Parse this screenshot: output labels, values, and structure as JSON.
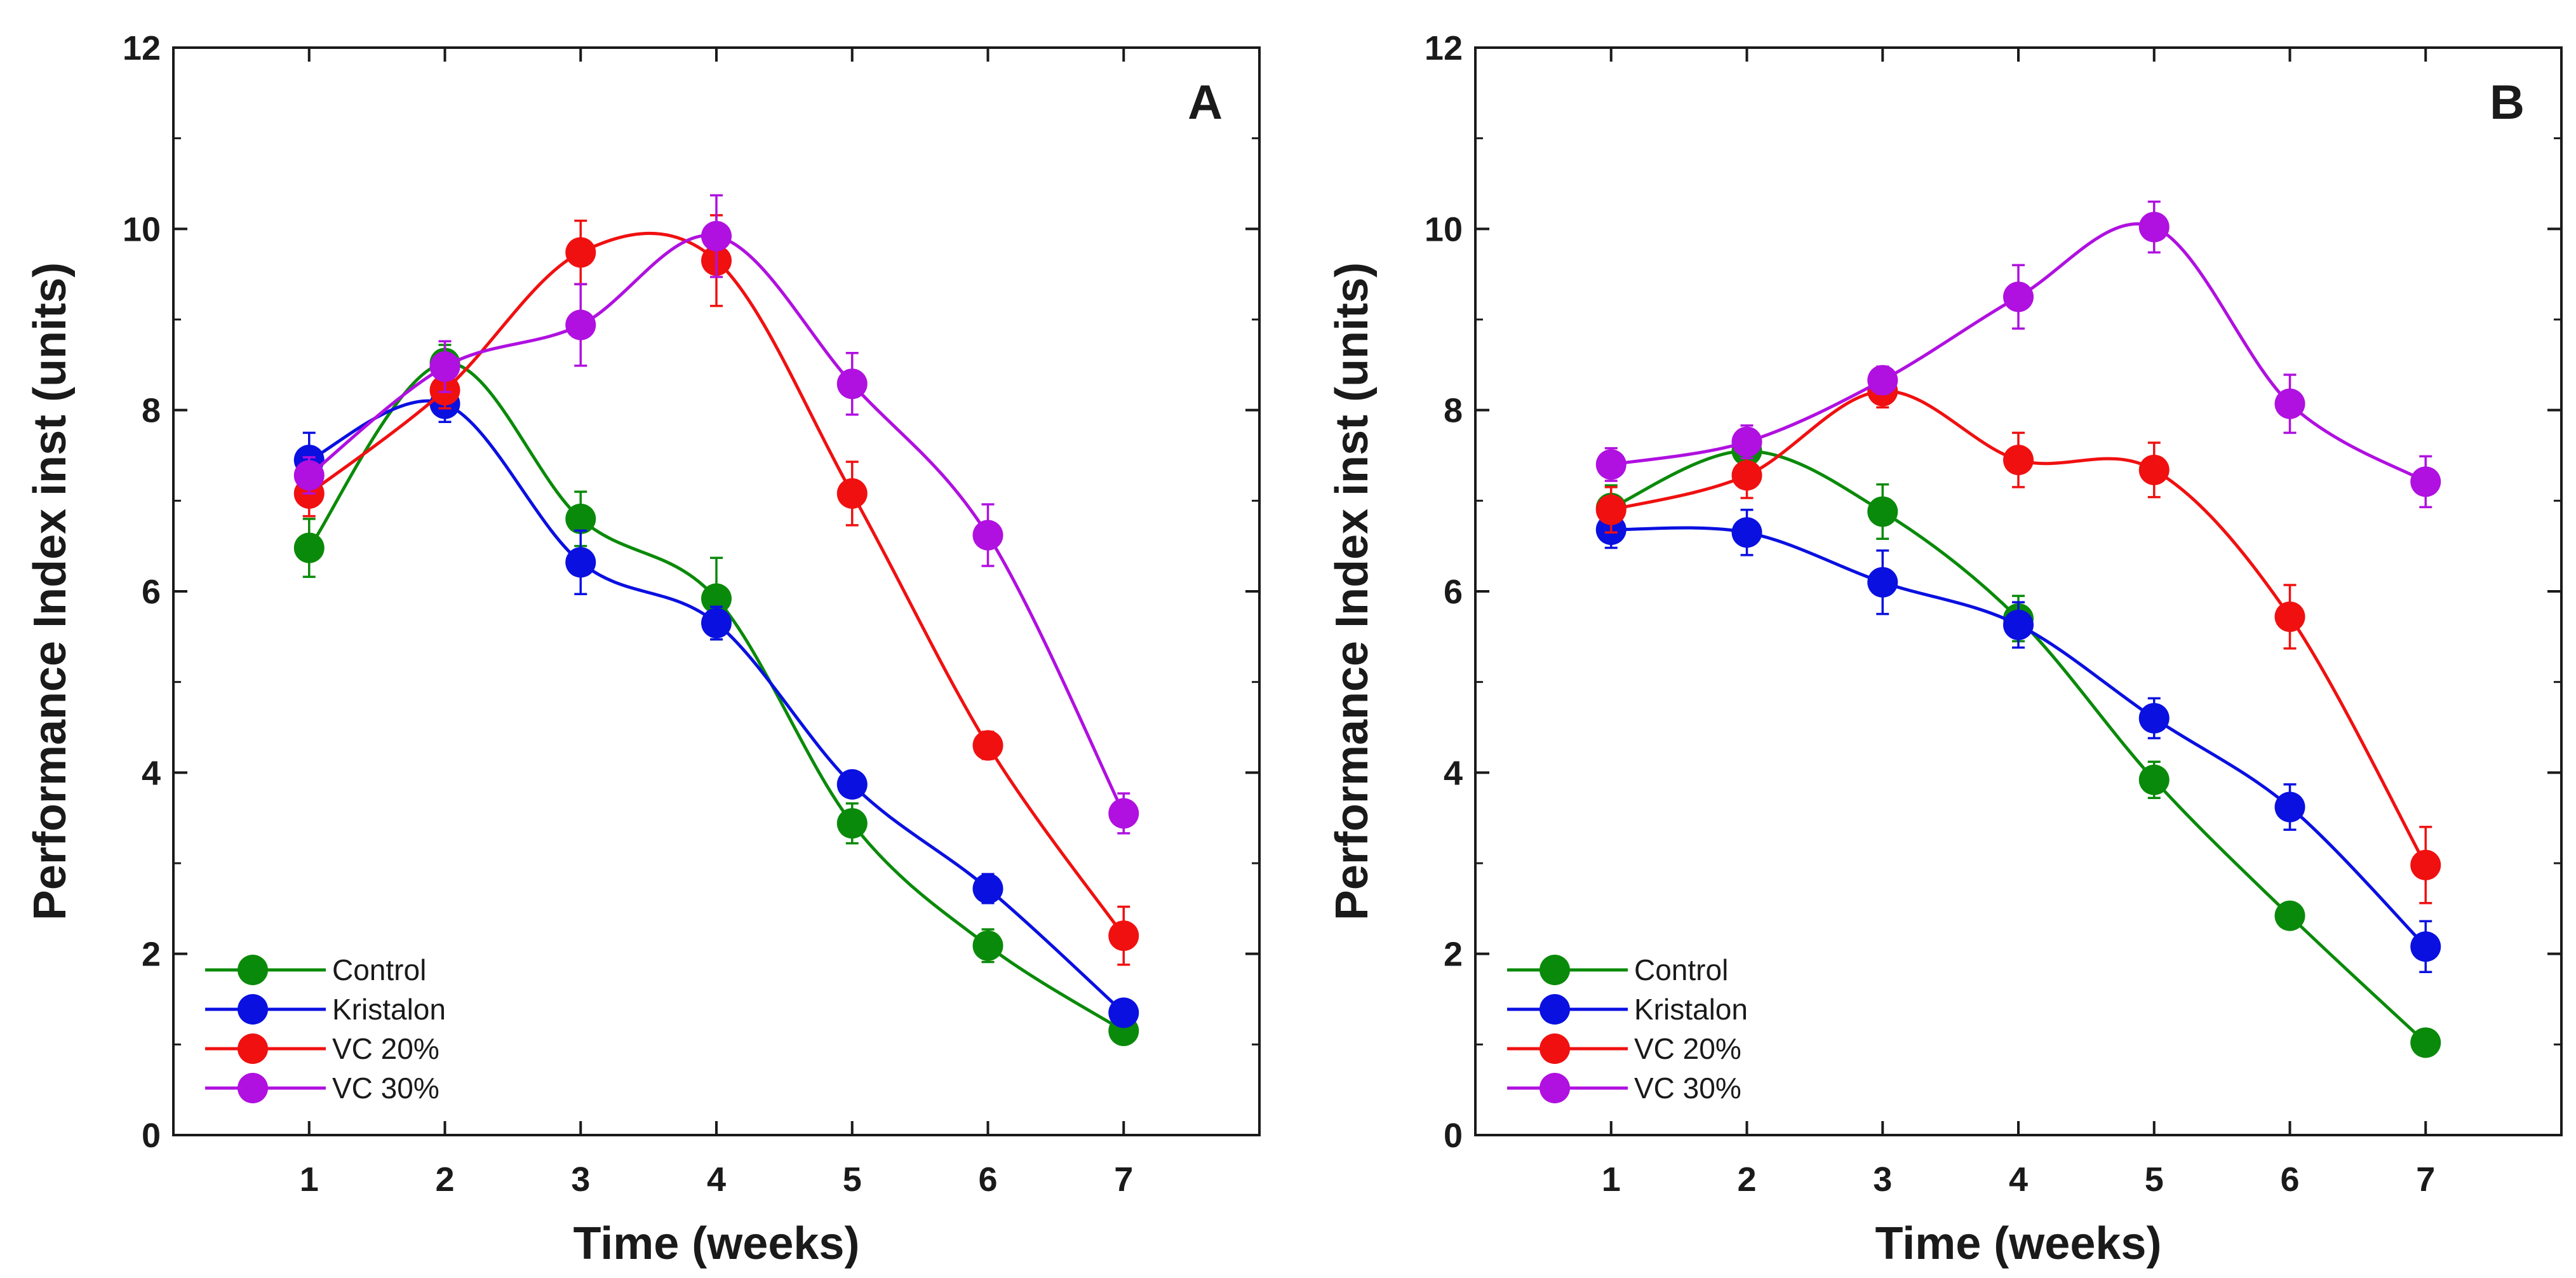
{
  "chart_data": [
    {
      "type": "line",
      "panel_label": "A",
      "xlabel": "Time (weeks)",
      "ylabel": "Performance Index inst (units)",
      "x": [
        1,
        2,
        3,
        4,
        5,
        6,
        7
      ],
      "xlim": [
        0,
        8
      ],
      "ylim": [
        0,
        12
      ],
      "xticks": [
        "1",
        "2",
        "3",
        "4",
        "5",
        "6",
        "7"
      ],
      "yticks": [
        "0",
        "2",
        "4",
        "6",
        "8",
        "10",
        "12"
      ],
      "legend_position": "bottom-left",
      "series": [
        {
          "name": "Control",
          "color": "#0a8a0a",
          "values": [
            6.48,
            8.52,
            6.8,
            5.92,
            3.44,
            2.09,
            1.15
          ],
          "errors": [
            0.32,
            0.2,
            0.3,
            0.45,
            0.22,
            0.18,
            0.1
          ]
        },
        {
          "name": "Kristalon",
          "color": "#0a10e0",
          "values": [
            7.45,
            8.07,
            6.32,
            5.65,
            3.87,
            2.72,
            1.35
          ],
          "errors": [
            0.3,
            0.2,
            0.35,
            0.18,
            0.14,
            0.16,
            0.1
          ]
        },
        {
          "name": "VC 20%",
          "color": "#f01010",
          "values": [
            7.08,
            8.22,
            9.74,
            9.65,
            7.08,
            4.3,
            2.2
          ],
          "errors": [
            0.25,
            0.2,
            0.35,
            0.5,
            0.35,
            0.15,
            0.32
          ]
        },
        {
          "name": "VC 30%",
          "color": "#b010e0",
          "values": [
            7.28,
            8.48,
            8.94,
            9.92,
            8.29,
            6.62,
            3.55
          ],
          "errors": [
            0.2,
            0.28,
            0.45,
            0.45,
            0.34,
            0.34,
            0.22
          ]
        }
      ]
    },
    {
      "type": "line",
      "panel_label": "B",
      "xlabel": "Time (weeks)",
      "ylabel": "Performance Index inst (units)",
      "x": [
        1,
        2,
        3,
        4,
        5,
        6,
        7
      ],
      "xlim": [
        0,
        8
      ],
      "ylim": [
        0,
        12
      ],
      "xticks": [
        "1",
        "2",
        "3",
        "4",
        "5",
        "6",
        "7"
      ],
      "yticks": [
        "0",
        "2",
        "4",
        "6",
        "8",
        "10",
        "12"
      ],
      "legend_position": "bottom-left",
      "series": [
        {
          "name": "Control",
          "color": "#0a8a0a",
          "values": [
            6.92,
            7.55,
            6.88,
            5.7,
            3.92,
            2.42,
            1.02
          ],
          "errors": [
            0.25,
            0.15,
            0.3,
            0.25,
            0.2,
            0.1,
            0.08
          ]
        },
        {
          "name": "Kristalon",
          "color": "#0a10e0",
          "values": [
            6.68,
            6.65,
            6.1,
            5.63,
            4.6,
            3.62,
            2.08
          ],
          "errors": [
            0.2,
            0.25,
            0.35,
            0.25,
            0.22,
            0.25,
            0.28
          ]
        },
        {
          "name": "VC 20%",
          "color": "#f01010",
          "values": [
            6.9,
            7.28,
            8.21,
            7.45,
            7.34,
            5.72,
            2.98
          ],
          "errors": [
            0.25,
            0.25,
            0.18,
            0.3,
            0.3,
            0.35,
            0.42
          ]
        },
        {
          "name": "VC 30%",
          "color": "#b010e0",
          "values": [
            7.4,
            7.65,
            8.33,
            9.25,
            10.02,
            8.07,
            7.21
          ],
          "errors": [
            0.18,
            0.18,
            0.15,
            0.35,
            0.28,
            0.32,
            0.28
          ]
        }
      ]
    }
  ]
}
